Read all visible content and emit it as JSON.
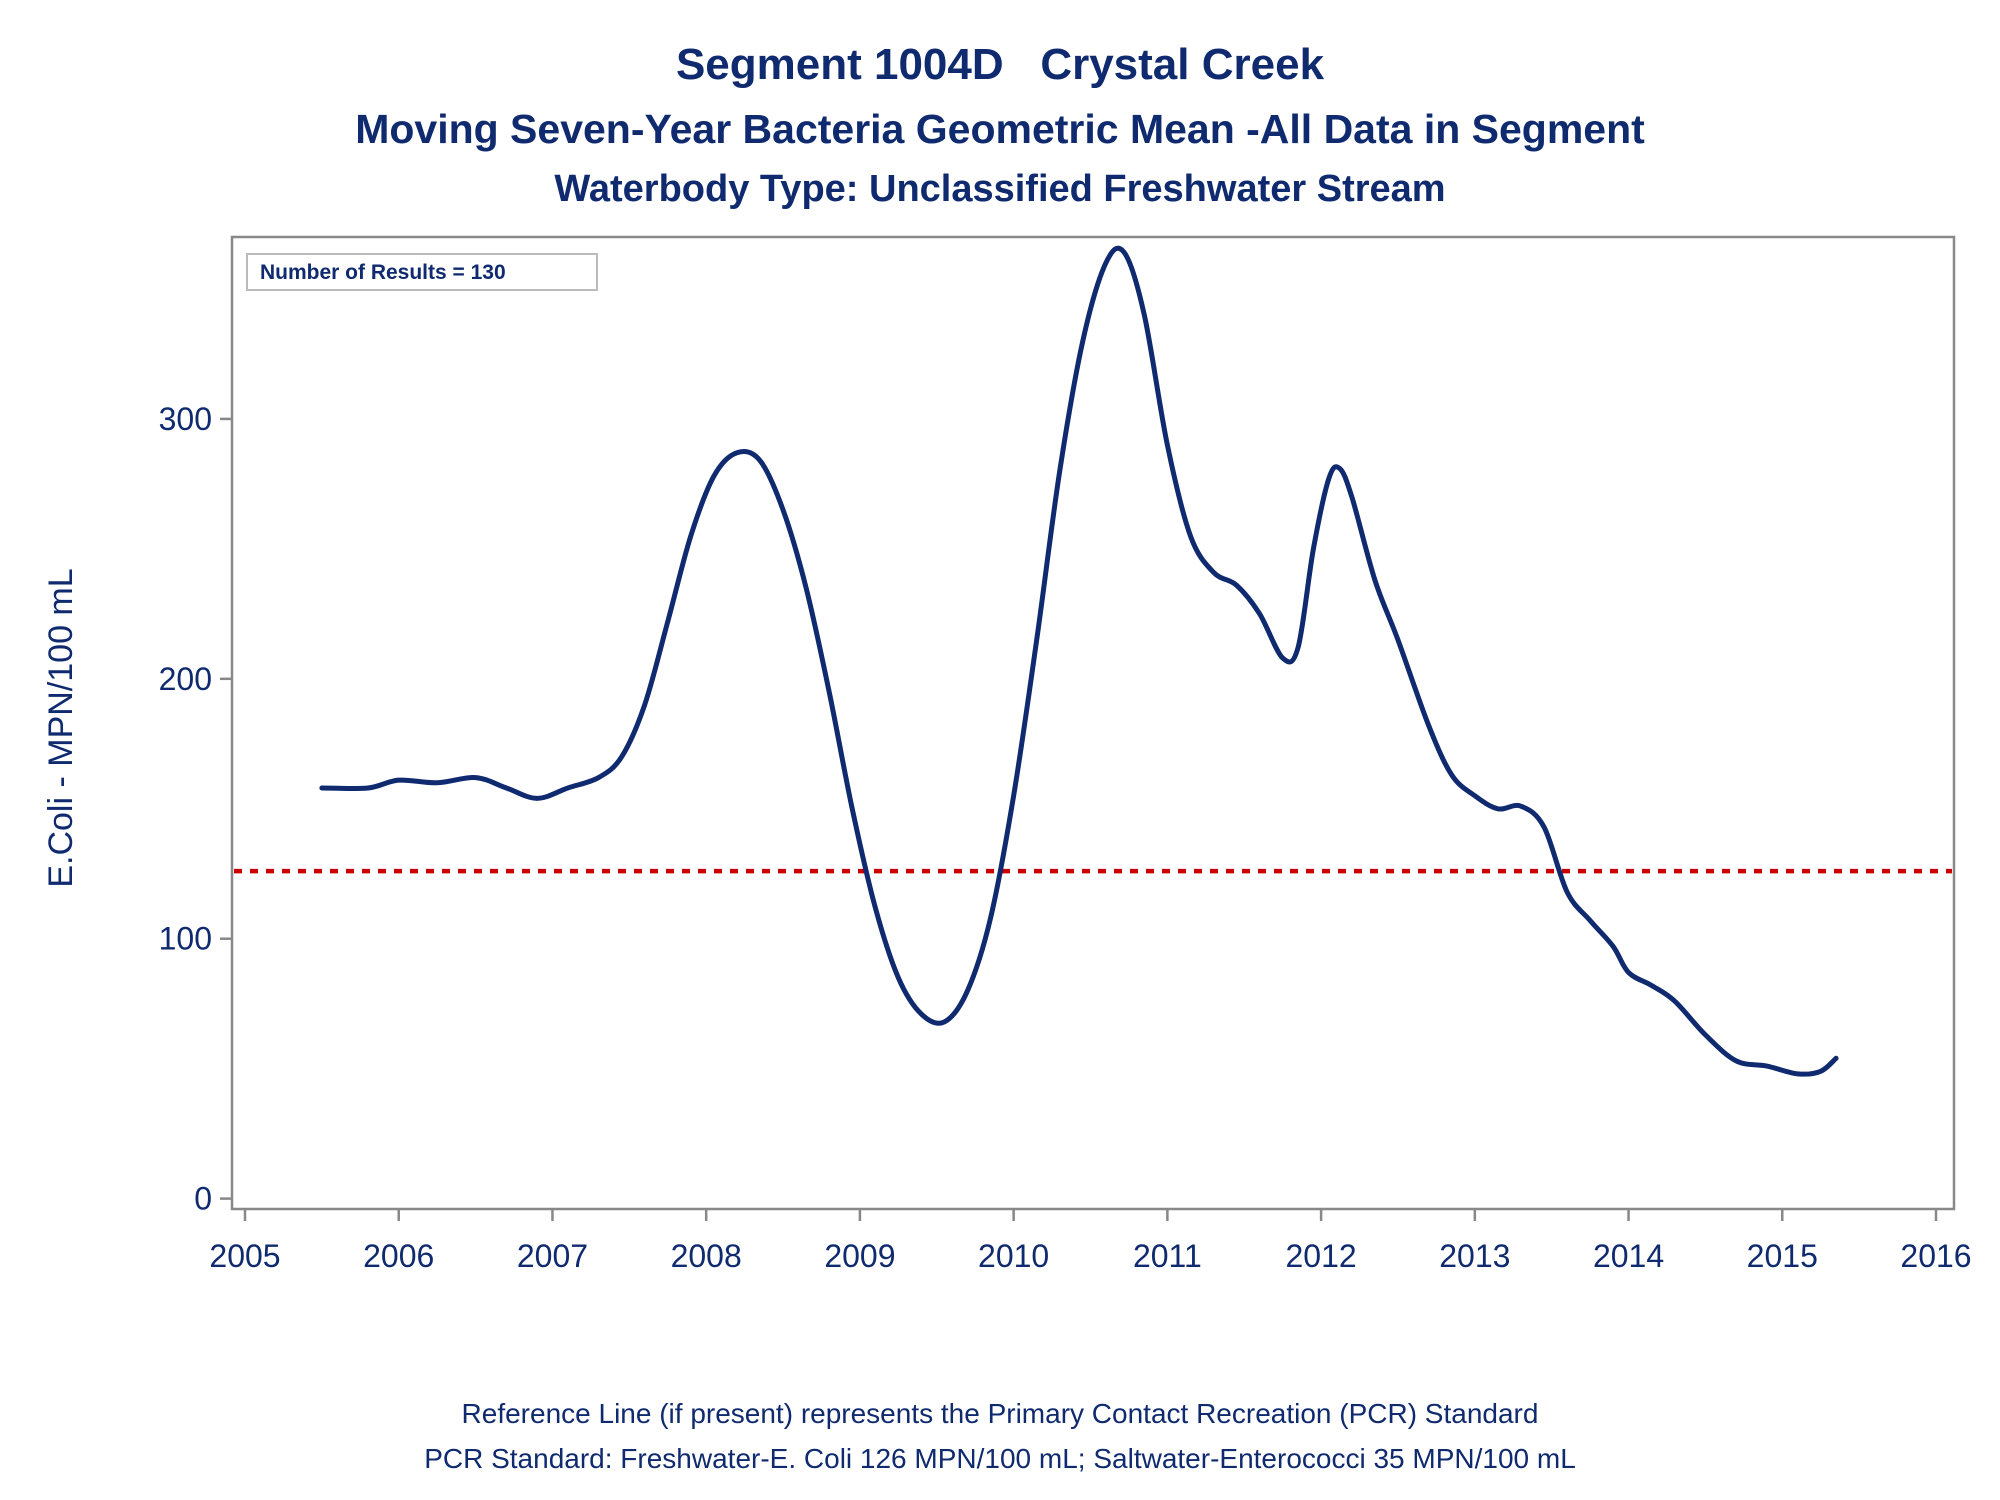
{
  "header": {
    "title": "Segment 1004D   Crystal Creek",
    "subtitle": "Moving Seven-Year Bacteria Geometric Mean -All Data in Segment",
    "subtitle2": "Waterbody Type: Unclassified Freshwater Stream"
  },
  "footer": {
    "line1": "Reference Line (if present) represents the Primary Contact Recreation (PCR) Standard",
    "line2": "PCR Standard: Freshwater-E. Coli 126 MPN/100 mL; Saltwater-Enterococci 35 MPN/100 mL"
  },
  "chart_data": {
    "type": "line",
    "title": "Segment 1004D   Crystal Creek",
    "xlabel": "",
    "ylabel": "E.Coli - MPN/100 mL",
    "xlim": [
      2005,
      2016
    ],
    "ylim": [
      -4,
      370
    ],
    "x_ticks": [
      2005,
      2006,
      2007,
      2008,
      2009,
      2010,
      2011,
      2012,
      2013,
      2014,
      2015,
      2016
    ],
    "y_ticks": [
      0,
      100,
      200,
      300
    ],
    "grid": false,
    "annotation": "Number of Results = 130",
    "reference_line": {
      "y": 126,
      "color": "#cc0000",
      "style": "dotted"
    },
    "series": [
      {
        "color": "#0f2a6e",
        "points": [
          [
            2005.5,
            158
          ],
          [
            2005.8,
            158
          ],
          [
            2006.0,
            161
          ],
          [
            2006.25,
            160
          ],
          [
            2006.5,
            162
          ],
          [
            2006.7,
            158
          ],
          [
            2006.9,
            154
          ],
          [
            2007.1,
            158
          ],
          [
            2007.3,
            162
          ],
          [
            2007.45,
            170
          ],
          [
            2007.6,
            190
          ],
          [
            2007.75,
            222
          ],
          [
            2007.9,
            255
          ],
          [
            2008.05,
            278
          ],
          [
            2008.2,
            287
          ],
          [
            2008.35,
            284
          ],
          [
            2008.5,
            265
          ],
          [
            2008.65,
            235
          ],
          [
            2008.8,
            195
          ],
          [
            2008.95,
            150
          ],
          [
            2009.1,
            112
          ],
          [
            2009.25,
            85
          ],
          [
            2009.4,
            71
          ],
          [
            2009.55,
            68
          ],
          [
            2009.7,
            80
          ],
          [
            2009.85,
            108
          ],
          [
            2010.0,
            155
          ],
          [
            2010.15,
            215
          ],
          [
            2010.3,
            280
          ],
          [
            2010.45,
            330
          ],
          [
            2010.6,
            360
          ],
          [
            2010.72,
            364
          ],
          [
            2010.85,
            340
          ],
          [
            2011.0,
            290
          ],
          [
            2011.15,
            255
          ],
          [
            2011.3,
            241
          ],
          [
            2011.45,
            236
          ],
          [
            2011.6,
            225
          ],
          [
            2011.75,
            208
          ],
          [
            2011.85,
            212
          ],
          [
            2011.95,
            250
          ],
          [
            2012.05,
            277
          ],
          [
            2012.12,
            281
          ],
          [
            2012.2,
            270
          ],
          [
            2012.35,
            238
          ],
          [
            2012.5,
            215
          ],
          [
            2012.7,
            182
          ],
          [
            2012.85,
            163
          ],
          [
            2013.0,
            155
          ],
          [
            2013.15,
            150
          ],
          [
            2013.3,
            151
          ],
          [
            2013.45,
            143
          ],
          [
            2013.6,
            118
          ],
          [
            2013.75,
            107
          ],
          [
            2013.9,
            97
          ],
          [
            2014.0,
            87
          ],
          [
            2014.15,
            82
          ],
          [
            2014.3,
            76
          ],
          [
            2014.5,
            63
          ],
          [
            2014.7,
            53
          ],
          [
            2014.9,
            51
          ],
          [
            2015.1,
            48
          ],
          [
            2015.25,
            49
          ],
          [
            2015.35,
            54
          ]
        ]
      }
    ]
  }
}
